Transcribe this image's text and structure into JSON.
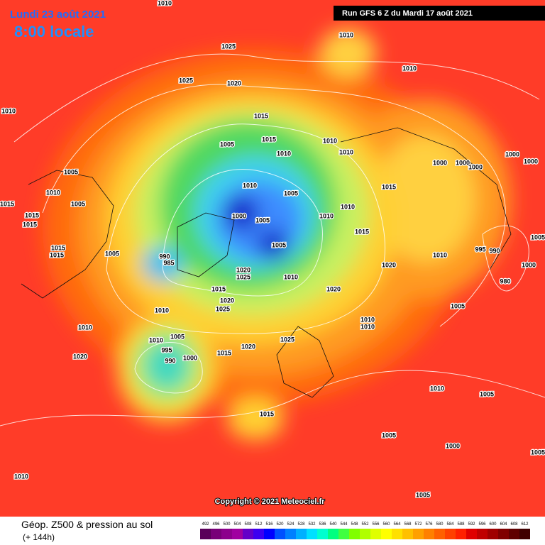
{
  "header": {
    "date": "Lundi 23 août 2021",
    "time": "8:00 locale",
    "run": "Run GFS 6 Z du Mardi 17 août 2021"
  },
  "copyright": "Copyright © 2021 Meteociel.fr",
  "legend": {
    "title": "Géop. Z500 & pression au sol",
    "lead": "(+ 144h)",
    "ticks": [
      492,
      496,
      500,
      504,
      508,
      512,
      516,
      520,
      524,
      528,
      532,
      536,
      540,
      544,
      548,
      552,
      556,
      560,
      564,
      568,
      572,
      576,
      580,
      584,
      588,
      592,
      596,
      600,
      604,
      608,
      612
    ],
    "colors": [
      "#5a005a",
      "#780078",
      "#8c008c",
      "#a000a0",
      "#6400c8",
      "#3c00f0",
      "#0000ff",
      "#0050ff",
      "#0080ff",
      "#00b0ff",
      "#00e0ff",
      "#00ffd0",
      "#00ff80",
      "#40ff40",
      "#80ff00",
      "#b0ff00",
      "#e0ff00",
      "#ffff00",
      "#ffe000",
      "#ffc000",
      "#ffa000",
      "#ff8000",
      "#ff6000",
      "#ff4000",
      "#ff2000",
      "#e00000",
      "#c00000",
      "#a00000",
      "#800000",
      "#600000",
      "#400000"
    ]
  },
  "pressure_labels": [
    "1010",
    "1025",
    "1010",
    "1010",
    "1010",
    "1025",
    "1020",
    "1015",
    "1005",
    "1010",
    "1010",
    "1010",
    "1015",
    "1000",
    "1000",
    "1000",
    "1000",
    "1000",
    "1005",
    "1010",
    "1005",
    "1015",
    "1015",
    "1015",
    "1015",
    "1005",
    "1000",
    "1005",
    "1010",
    "1010",
    "1005",
    "1015",
    "1005",
    "1015",
    "1015",
    "1005",
    "990",
    "985",
    "1010",
    "995",
    "990",
    "1000",
    "1020",
    "1025",
    "1010",
    "1020",
    "980",
    "1015",
    "1020",
    "1020",
    "1025",
    "1010",
    "1005",
    "1010",
    "1010",
    "1010",
    "1005",
    "1025",
    "1020",
    "995",
    "1000",
    "990",
    "1015",
    "1020",
    "1010",
    "1005",
    "1015",
    "1005",
    "1000",
    "1005",
    "1010",
    "1005",
    "1010",
    "1010"
  ]
}
